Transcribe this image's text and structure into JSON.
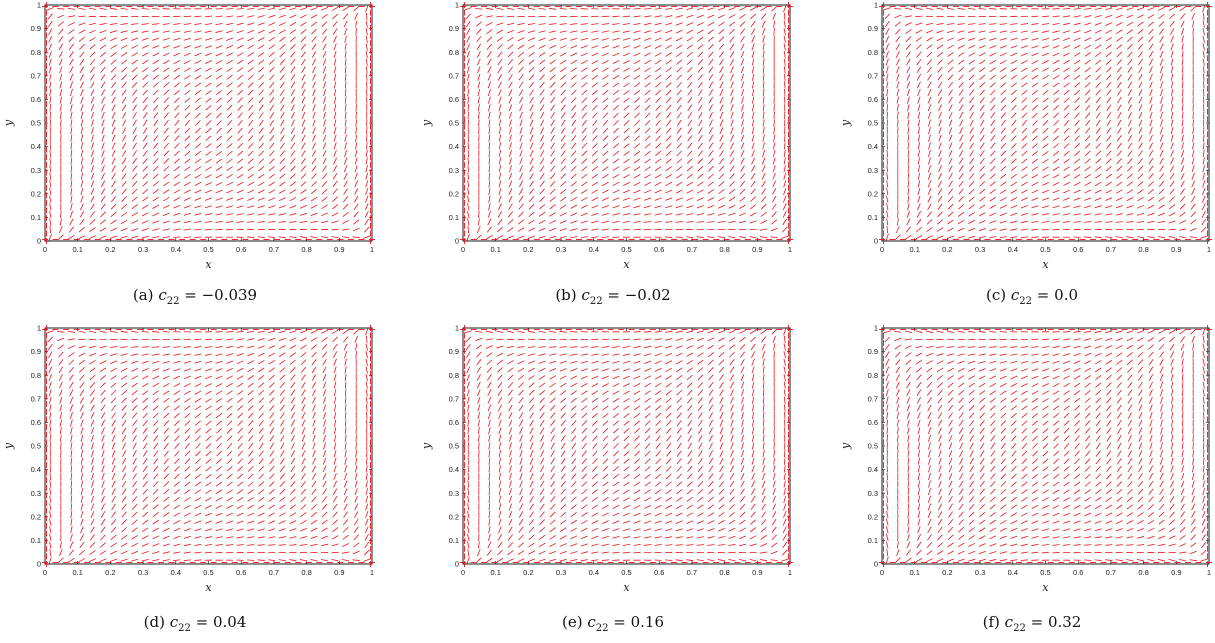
{
  "chart_data": [
    {
      "type": "quiver",
      "label": "(a)",
      "symbol": "c",
      "subscript": "22",
      "eq": "=",
      "value": "−0.039",
      "xlabel": "x",
      "ylabel": "y",
      "xlim": [
        0,
        1
      ],
      "ylim": [
        0,
        1
      ],
      "xticks": [
        "0",
        "0.1",
        "0.2",
        "0.3",
        "0.4",
        "0.5",
        "0.6",
        "0.7",
        "0.8",
        "0.9",
        "1"
      ],
      "yticks": [
        "0",
        "0.1",
        "0.2",
        "0.3",
        "0.4",
        "0.5",
        "0.6",
        "0.7",
        "0.8",
        "0.9",
        "1"
      ],
      "color": "#e8141b",
      "grid_n": 31,
      "pattern": "rotating director field"
    },
    {
      "type": "quiver",
      "label": "(b)",
      "symbol": "c",
      "subscript": "22",
      "eq": "=",
      "value": "−0.02",
      "xlabel": "x",
      "ylabel": "y",
      "xlim": [
        0,
        1
      ],
      "ylim": [
        0,
        1
      ],
      "xticks": [
        "0",
        "0.1",
        "0.2",
        "0.3",
        "0.4",
        "0.5",
        "0.6",
        "0.7",
        "0.8",
        "0.9",
        "1"
      ],
      "yticks": [
        "0",
        "0.1",
        "0.2",
        "0.3",
        "0.4",
        "0.5",
        "0.6",
        "0.7",
        "0.8",
        "0.9",
        "1"
      ],
      "color": "#e8141b",
      "grid_n": 31,
      "pattern": "rotating director field"
    },
    {
      "type": "quiver",
      "label": "(c)",
      "symbol": "c",
      "subscript": "22",
      "eq": "=",
      "value": "0.0",
      "xlabel": "x",
      "ylabel": "y",
      "xlim": [
        0,
        1
      ],
      "ylim": [
        0,
        1
      ],
      "xticks": [
        "0",
        "0.1",
        "0.2",
        "0.3",
        "0.4",
        "0.5",
        "0.6",
        "0.7",
        "0.8",
        "0.9",
        "1"
      ],
      "yticks": [
        "0",
        "0.1",
        "0.2",
        "0.3",
        "0.4",
        "0.5",
        "0.6",
        "0.7",
        "0.8",
        "0.9",
        "1"
      ],
      "color": "#e8141b",
      "grid_n": 31,
      "pattern": "rotating director field"
    },
    {
      "type": "quiver",
      "label": "(d)",
      "symbol": "c",
      "subscript": "22",
      "eq": "=",
      "value": "0.04",
      "xlabel": "x",
      "ylabel": "y",
      "xlim": [
        0,
        1
      ],
      "ylim": [
        0,
        1
      ],
      "xticks": [
        "0",
        "0.1",
        "0.2",
        "0.3",
        "0.4",
        "0.5",
        "0.6",
        "0.7",
        "0.8",
        "0.9",
        "1"
      ],
      "yticks": [
        "0",
        "0.1",
        "0.2",
        "0.3",
        "0.4",
        "0.5",
        "0.6",
        "0.7",
        "0.8",
        "0.9",
        "1"
      ],
      "color": "#e8141b",
      "grid_n": 31,
      "pattern": "rotating director field"
    },
    {
      "type": "quiver",
      "label": "(e)",
      "symbol": "c",
      "subscript": "22",
      "eq": "=",
      "value": "0.16",
      "xlabel": "x",
      "ylabel": "y",
      "xlim": [
        0,
        1
      ],
      "ylim": [
        0,
        1
      ],
      "xticks": [
        "0",
        "0.1",
        "0.2",
        "0.3",
        "0.4",
        "0.5",
        "0.6",
        "0.7",
        "0.8",
        "0.9",
        "1"
      ],
      "yticks": [
        "0",
        "0.1",
        "0.2",
        "0.3",
        "0.4",
        "0.5",
        "0.6",
        "0.7",
        "0.8",
        "0.9",
        "1"
      ],
      "color": "#e8141b",
      "grid_n": 31,
      "pattern": "rotating director field"
    },
    {
      "type": "quiver",
      "label": "(f)",
      "symbol": "c",
      "subscript": "22",
      "eq": "=",
      "value": "0.32",
      "xlabel": "x",
      "ylabel": "y",
      "xlim": [
        0,
        1
      ],
      "ylim": [
        0,
        1
      ],
      "xticks": [
        "0",
        "0.1",
        "0.2",
        "0.3",
        "0.4",
        "0.5",
        "0.6",
        "0.7",
        "0.8",
        "0.9",
        "1"
      ],
      "yticks": [
        "0",
        "0.1",
        "0.2",
        "0.3",
        "0.4",
        "0.5",
        "0.6",
        "0.7",
        "0.8",
        "0.9",
        "1"
      ],
      "color": "#e8141b",
      "grid_n": 31,
      "pattern": "rotating director field"
    }
  ]
}
